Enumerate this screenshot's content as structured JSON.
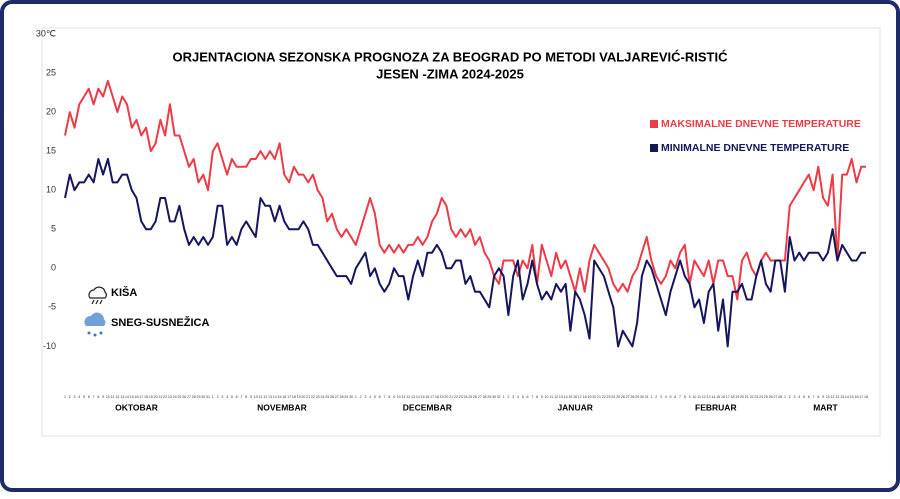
{
  "chart_data": {
    "type": "line",
    "title": "ORJENTACIONA  SEZONSKA PROGNOZA ZA BEOGRAD PO METODI VALJAREVIĆ-RISTIĆ",
    "subtitle": "JESEN -ZIMA 2024-2025",
    "annotations": [
      "KIŠA",
      "SNEG-SUSNEŽICA"
    ],
    "months": [
      "OKTOBAR",
      "NOVEMBAR",
      "DECEMBAR",
      "JANUAR",
      "FEBRUAR",
      "MART"
    ],
    "categories": [
      1,
      2,
      3,
      4,
      5,
      6,
      7,
      8,
      9,
      10,
      11,
      12,
      13,
      14,
      15,
      16,
      17,
      18,
      19,
      20,
      21,
      22,
      23,
      24,
      25,
      26,
      27,
      28,
      29,
      30,
      31,
      1,
      2,
      3,
      4,
      5,
      6,
      7,
      8,
      9,
      10,
      11,
      12,
      13,
      14,
      15,
      16,
      17,
      18,
      19,
      20,
      21,
      22,
      23,
      24,
      25,
      26,
      27,
      28,
      29,
      30,
      1,
      2,
      3,
      4,
      5,
      6,
      7,
      8,
      9,
      10,
      11,
      12,
      13,
      14,
      15,
      16,
      17,
      18,
      19,
      20,
      21,
      22,
      23,
      24,
      25,
      26,
      27,
      28,
      29,
      30,
      31,
      1,
      2,
      3,
      4,
      5,
      6,
      7,
      8,
      9,
      10,
      11,
      12,
      13,
      14,
      15,
      16,
      17,
      18,
      19,
      20,
      21,
      22,
      23,
      24,
      25,
      26,
      27,
      28,
      29,
      30,
      31,
      1,
      2,
      3,
      4,
      5,
      6,
      7,
      8,
      9,
      10,
      11,
      12,
      13,
      14,
      15,
      16,
      17,
      18,
      19,
      20,
      21,
      22,
      23,
      24,
      25,
      26,
      27,
      28,
      1,
      2,
      3,
      4,
      5,
      6,
      7,
      8,
      9,
      10,
      11,
      12,
      13,
      14,
      15,
      16,
      17,
      18
    ],
    "series": [
      {
        "name": "MAKSIMALNE DNEVNE TEMPERATURE",
        "color": "#ee3b48",
        "values": [
          17,
          20,
          18,
          21,
          22,
          23,
          21,
          23,
          22,
          24,
          22,
          20,
          22,
          21,
          18,
          19,
          17,
          18,
          15,
          16,
          19,
          17,
          21,
          17,
          17,
          15,
          13,
          14,
          11,
          12,
          10,
          15,
          16,
          14,
          12,
          14,
          13,
          13,
          13,
          14,
          14,
          15,
          14,
          15,
          14,
          16,
          12,
          11,
          13,
          12,
          12,
          11,
          12,
          10,
          9,
          6,
          7,
          5,
          4,
          5,
          4,
          3,
          5,
          7,
          9,
          7,
          3,
          2,
          3,
          2,
          3,
          2,
          3,
          3,
          4,
          3,
          4,
          6,
          7,
          9,
          8,
          5,
          4,
          5,
          4,
          5,
          3,
          4,
          2,
          1,
          -1,
          -2,
          1,
          1,
          1,
          -1,
          1,
          0,
          3,
          -2,
          3,
          1,
          -1,
          2,
          0,
          1,
          -1,
          -3,
          0,
          -3,
          1,
          3,
          2,
          1,
          0,
          -2,
          -3,
          -2,
          -3,
          -1,
          0,
          2,
          4,
          1,
          -1,
          -2,
          -1,
          1,
          0,
          2,
          3,
          -2,
          1,
          0,
          -1,
          1,
          -2,
          1,
          1,
          -1,
          -1,
          -4,
          1,
          2,
          0,
          -1,
          1,
          2,
          1,
          1,
          1,
          1,
          8,
          9,
          10,
          11,
          12,
          10,
          13,
          9,
          8,
          12,
          1,
          12,
          12,
          14,
          11,
          13,
          13
        ]
      },
      {
        "name": "MINIMALNE DNEVNE TEMPERATURE",
        "color": "#16165e",
        "values": [
          9,
          12,
          10,
          11,
          11,
          12,
          11,
          14,
          12,
          14,
          11,
          11,
          12,
          12,
          10,
          9,
          6,
          5,
          5,
          6,
          9,
          9,
          6,
          6,
          8,
          5,
          3,
          4,
          3,
          4,
          3,
          4,
          8,
          8,
          3,
          4,
          3,
          5,
          6,
          5,
          4,
          9,
          8,
          8,
          6,
          8,
          6,
          5,
          5,
          5,
          6,
          5,
          3,
          3,
          2,
          1,
          0,
          -1,
          -1,
          -1,
          -2,
          0,
          1,
          2,
          -1,
          0,
          -2,
          -3,
          -2,
          0,
          -1,
          -1,
          -4,
          -1,
          1,
          -1,
          2,
          2,
          3,
          2,
          0,
          0,
          1,
          1,
          -2,
          -1,
          -3,
          -3,
          -4,
          -5,
          -1,
          0,
          -1,
          -6,
          -1,
          1,
          -4,
          -2,
          1,
          -2,
          -4,
          -3,
          -4,
          -2,
          -3,
          -2,
          -8,
          -3,
          -4,
          -6,
          -9,
          1,
          0,
          -1,
          -3,
          -5,
          -10,
          -8,
          -9,
          -10,
          -7,
          -1,
          1,
          0,
          -2,
          -4,
          -6,
          -3,
          -1,
          1,
          -1,
          -2,
          -5,
          -4,
          -7,
          -3,
          -2,
          -8,
          -4,
          -10,
          -3,
          -3,
          -2,
          -4,
          -4,
          -1,
          1,
          -2,
          -3,
          1,
          1,
          -3,
          4,
          1,
          2,
          1,
          2,
          2,
          2,
          1,
          2,
          5,
          1,
          3,
          2,
          1,
          1,
          2,
          2
        ]
      }
    ],
    "ylim": [
      -12,
      30
    ],
    "yticks": [
      -10,
      -5,
      0,
      5,
      10,
      15,
      20,
      25,
      {
        "value": 30,
        "label": "30℃"
      }
    ],
    "grid": false,
    "legend": "right"
  }
}
